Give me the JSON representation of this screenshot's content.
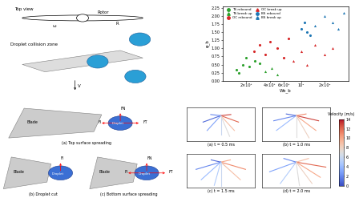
{
  "schematic": {
    "top_view": "Top view",
    "rotor": "Rotor",
    "radius": "R",
    "zone": "Droplet collision zone",
    "velocity": "V",
    "omega": "ω"
  },
  "chart_data": {
    "type": "scatter",
    "x_label": "We_b",
    "y_label": "φ_b",
    "log": "x",
    "legend": "upper left",
    "xlim": [
      1000,
      40000
    ],
    "xticks": [
      {
        "value": 2000,
        "label": "2×10³"
      },
      {
        "value": 4000,
        "label": "4×10³"
      },
      {
        "value": 6000,
        "label": "6×10³"
      },
      {
        "value": 10000,
        "label": "10⁴"
      },
      {
        "value": 20000,
        "label": "2×10⁴"
      }
    ],
    "ylim": [
      0,
      2.3
    ],
    "yticks": [
      {
        "value": 0,
        "label": "0.00"
      },
      {
        "value": 0.25,
        "label": "0.25"
      },
      {
        "value": 0.5,
        "label": "0.50"
      },
      {
        "value": 0.75,
        "label": "0.75"
      },
      {
        "value": 1.0,
        "label": "1.00"
      },
      {
        "value": 1.25,
        "label": "1.25"
      },
      {
        "value": 1.5,
        "label": "1.50"
      },
      {
        "value": 1.75,
        "label": "1.75"
      },
      {
        "value": 2.0,
        "label": "2.00"
      },
      {
        "value": 2.25,
        "label": "2.25"
      }
    ],
    "series": [
      {
        "name": "TS rebound",
        "color": "#2ca02c",
        "marker": "circle",
        "x": [
          1500,
          1800,
          2200,
          2600,
          3000,
          1600,
          2000
        ],
        "y": [
          0.35,
          0.5,
          0.45,
          0.6,
          0.55,
          0.25,
          0.7
        ]
      },
      {
        "name": "TS break up",
        "color": "#2ca02c",
        "marker": "triangle",
        "x": [
          3500,
          4200,
          5000
        ],
        "y": [
          0.3,
          0.4,
          0.2
        ]
      },
      {
        "name": "OC rebound",
        "color": "#d62728",
        "marker": "circle",
        "x": [
          2500,
          3000,
          3500,
          4000,
          5000,
          6000,
          7000
        ],
        "y": [
          0.9,
          1.1,
          0.8,
          1.2,
          1.0,
          0.7,
          1.3
        ]
      },
      {
        "name": "OC break up",
        "color": "#d62728",
        "marker": "triangle",
        "x": [
          8000,
          10000,
          12000,
          15000,
          20000,
          25000
        ],
        "y": [
          0.6,
          0.9,
          0.5,
          1.1,
          0.8,
          1.0
        ]
      },
      {
        "name": "BS rebound",
        "color": "#1f77b4",
        "marker": "circle",
        "x": [
          10000,
          11000,
          12000,
          13000
        ],
        "y": [
          1.6,
          1.8,
          1.5,
          1.4
        ]
      },
      {
        "name": "BS break up",
        "color": "#1f77b4",
        "marker": "triangle",
        "x": [
          15000,
          20000,
          25000,
          30000,
          35000
        ],
        "y": [
          1.7,
          2.0,
          1.8,
          1.6,
          2.1
        ]
      }
    ]
  },
  "blade_views": [
    {
      "caption": "(a) Top surface spreading",
      "blade": "Blade",
      "droplet": "Droplet",
      "forces": [
        "FN",
        "FT",
        "FI"
      ]
    },
    {
      "caption": "(b) Droplet cut",
      "blade": "Blade",
      "droplet": "Droplet",
      "forces": [
        "FI"
      ]
    },
    {
      "caption": "(c) Bottom surface spreading",
      "blade": "Blade",
      "droplet": "Droplet",
      "forces": [
        "FN",
        "FT",
        "FI"
      ]
    }
  ],
  "velocity_field": {
    "colorbar_label": "Velocity (m/s)",
    "clim": [
      0,
      14
    ],
    "cticks": [
      0,
      2,
      4,
      6,
      8,
      10,
      12,
      14
    ],
    "xlim": [
      -10,
      10
    ],
    "ylim": [
      -12,
      4
    ],
    "panels": [
      {
        "caption": "(a) t = 0.5 ms",
        "rays": [
          [
            -30,
            6,
            12
          ],
          [
            -60,
            8,
            9
          ],
          [
            -90,
            9,
            6
          ],
          [
            -120,
            8,
            3
          ],
          [
            -150,
            6,
            1
          ],
          [
            10,
            3,
            13
          ],
          [
            170,
            3,
            2
          ],
          [
            -75,
            10,
            7
          ]
        ]
      },
      {
        "caption": "(b) t = 1.0 ms",
        "rays": [
          [
            -20,
            7,
            13
          ],
          [
            -50,
            9,
            10
          ],
          [
            -90,
            10,
            7
          ],
          [
            -130,
            9,
            4
          ],
          [
            -160,
            7,
            2
          ],
          [
            15,
            3,
            11
          ],
          [
            165,
            3,
            1
          ],
          [
            -70,
            11,
            8
          ]
        ]
      },
      {
        "caption": "(c) t = 1.5 ms",
        "rays": [
          [
            -25,
            8,
            11
          ],
          [
            -55,
            10,
            9
          ],
          [
            -90,
            11,
            6
          ],
          [
            -125,
            10,
            4
          ],
          [
            -155,
            8,
            2
          ],
          [
            20,
            3,
            10
          ],
          [
            160,
            3,
            1
          ],
          [
            -100,
            11,
            5
          ]
        ]
      },
      {
        "caption": "(d) t = 2.0 ms",
        "rays": [
          [
            -15,
            9,
            12
          ],
          [
            -45,
            10,
            10
          ],
          [
            -85,
            11,
            7
          ],
          [
            -115,
            11,
            5
          ],
          [
            -150,
            9,
            3
          ],
          [
            25,
            4,
            9
          ],
          [
            155,
            4,
            2
          ],
          [
            -65,
            11,
            8
          ]
        ]
      }
    ]
  }
}
